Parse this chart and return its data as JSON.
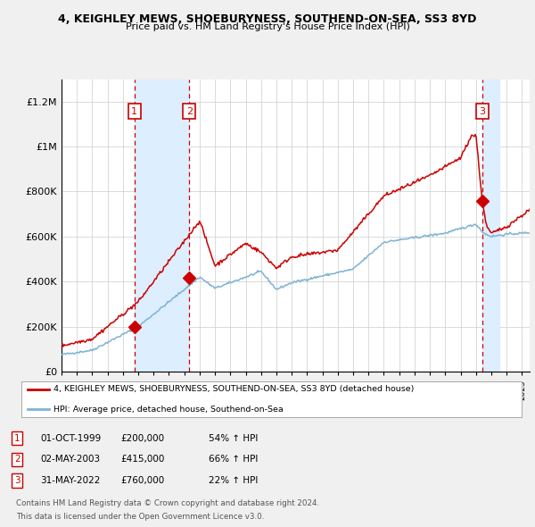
{
  "title": "4, KEIGHLEY MEWS, SHOEBURYNESS, SOUTHEND-ON-SEA, SS3 8YD",
  "subtitle": "Price paid vs. HM Land Registry's House Price Index (HPI)",
  "legend_line1": "4, KEIGHLEY MEWS, SHOEBURYNESS, SOUTHEND-ON-SEA, SS3 8YD (detached house)",
  "legend_line2": "HPI: Average price, detached house, Southend-on-Sea",
  "footer1": "Contains HM Land Registry data © Crown copyright and database right 2024.",
  "footer2": "This data is licensed under the Open Government Licence v3.0.",
  "table_rows": [
    {
      "num": "1",
      "date": "01-OCT-1999",
      "price": "£200,000",
      "hpi": "54% ↑ HPI"
    },
    {
      "num": "2",
      "date": "02-MAY-2003",
      "price": "£415,000",
      "hpi": "66% ↑ HPI"
    },
    {
      "num": "3",
      "date": "31-MAY-2022",
      "price": "£760,000",
      "hpi": "22% ↑ HPI"
    }
  ],
  "sale_dates_num": [
    1999.75,
    2003.33,
    2022.41
  ],
  "sale_prices": [
    200000,
    415000,
    760000
  ],
  "red_color": "#cc0000",
  "blue_color": "#7fb3d3",
  "highlight_color": "#ddeeff",
  "background_color": "#f0f0f0",
  "plot_bg_color": "#ffffff",
  "grid_color": "#cccccc",
  "ylim": [
    0,
    1300000
  ],
  "xlim_start": 1995.0,
  "xlim_end": 2025.5,
  "yticks": [
    0,
    200000,
    400000,
    600000,
    800000,
    1000000,
    1200000
  ],
  "ytick_labels": [
    "£0",
    "£200K",
    "£400K",
    "£600K",
    "£800K",
    "£1M",
    "£1.2M"
  ]
}
